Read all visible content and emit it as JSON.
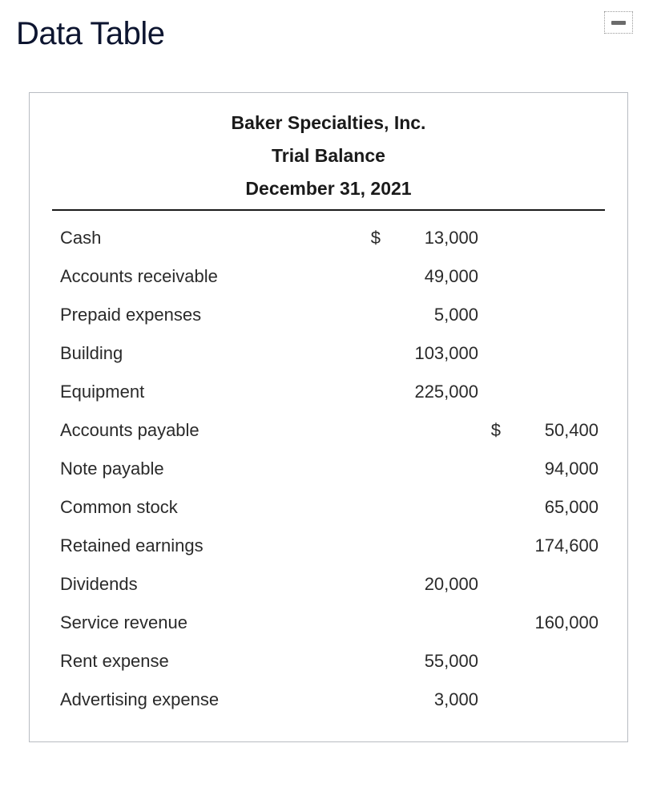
{
  "page": {
    "title": "Data Table"
  },
  "card": {
    "border_color": "#b8bcc2",
    "header_rule_color": "#1a1a1a"
  },
  "report": {
    "company": "Baker Specialties, Inc.",
    "name": "Trial Balance",
    "date": "December 31, 2021",
    "currency_symbol": "$",
    "rows": [
      {
        "account": "Cash",
        "debit": "13,000",
        "credit": "",
        "show_debit_sym": true,
        "show_credit_sym": false
      },
      {
        "account": "Accounts receivable",
        "debit": "49,000",
        "credit": "",
        "show_debit_sym": false,
        "show_credit_sym": false
      },
      {
        "account": "Prepaid expenses",
        "debit": "5,000",
        "credit": "",
        "show_debit_sym": false,
        "show_credit_sym": false
      },
      {
        "account": "Building",
        "debit": "103,000",
        "credit": "",
        "show_debit_sym": false,
        "show_credit_sym": false
      },
      {
        "account": "Equipment",
        "debit": "225,000",
        "credit": "",
        "show_debit_sym": false,
        "show_credit_sym": false
      },
      {
        "account": "Accounts payable",
        "debit": "",
        "credit": "50,400",
        "show_debit_sym": false,
        "show_credit_sym": true
      },
      {
        "account": "Note payable",
        "debit": "",
        "credit": "94,000",
        "show_debit_sym": false,
        "show_credit_sym": false
      },
      {
        "account": "Common stock",
        "debit": "",
        "credit": "65,000",
        "show_debit_sym": false,
        "show_credit_sym": false
      },
      {
        "account": "Retained earnings",
        "debit": "",
        "credit": "174,600",
        "show_debit_sym": false,
        "show_credit_sym": false
      },
      {
        "account": "Dividends",
        "debit": "20,000",
        "credit": "",
        "show_debit_sym": false,
        "show_credit_sym": false
      },
      {
        "account": "Service revenue",
        "debit": "",
        "credit": "160,000",
        "show_debit_sym": false,
        "show_credit_sym": false
      },
      {
        "account": "Rent expense",
        "debit": "55,000",
        "credit": "",
        "show_debit_sym": false,
        "show_credit_sym": false
      },
      {
        "account": "Advertising expense",
        "debit": "3,000",
        "credit": "",
        "show_debit_sym": false,
        "show_credit_sym": false
      }
    ]
  },
  "style": {
    "title_color": "#0d1530",
    "text_color": "#2a2a2a",
    "font_size_title": 40,
    "font_size_header": 23,
    "font_size_body": 22
  }
}
